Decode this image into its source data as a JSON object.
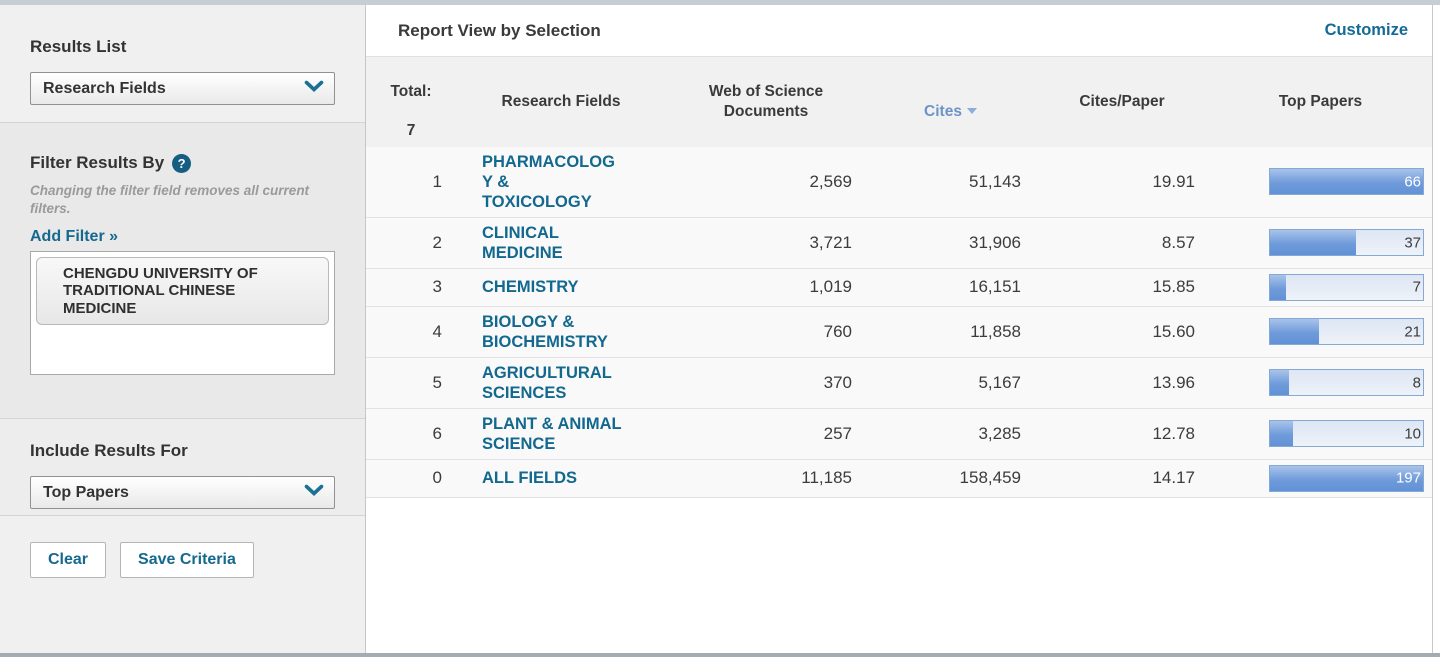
{
  "sidebar": {
    "results_list": {
      "label": "Results List",
      "selected": "Research Fields"
    },
    "filter": {
      "heading": "Filter Results By",
      "help_glyph": "?",
      "note": "Changing the filter field removes all current filters.",
      "add_filter_label": "Add Filter »",
      "selected_filter": "CHENGDU UNIVERSITY OF\nTRADITIONAL CHINESE\nMEDICINE"
    },
    "include_results": {
      "label": "Include Results For",
      "selected": "Top Papers"
    },
    "actions": {
      "clear": "Clear",
      "save": "Save Criteria"
    }
  },
  "main": {
    "title": "Report View by Selection",
    "customize_label": "Customize",
    "table": {
      "total_label": "Total:",
      "total_count": "7",
      "columns": {
        "research_fields": "Research Fields",
        "wos_documents": "Web of Science\nDocuments",
        "cites": "Cites",
        "cites_per_paper": "Cites/Paper",
        "top_papers": "Top Papers"
      },
      "sorted_by": "Cites",
      "sort_direction": "desc",
      "rows": [
        {
          "rank": "1",
          "field": "PHARMACOLOG\nY &\nTOXICOLOGY",
          "field_name": "PHARMACOLOGY & TOXICOLOGY",
          "wos_documents": "2,569",
          "cites": "51,143",
          "cites_per_paper": "19.91",
          "top_papers": 66
        },
        {
          "rank": "2",
          "field": "CLINICAL\nMEDICINE",
          "field_name": "CLINICAL MEDICINE",
          "wos_documents": "3,721",
          "cites": "31,906",
          "cites_per_paper": "8.57",
          "top_papers": 37
        },
        {
          "rank": "3",
          "field": "CHEMISTRY",
          "field_name": "CHEMISTRY",
          "wos_documents": "1,019",
          "cites": "16,151",
          "cites_per_paper": "15.85",
          "top_papers": 7
        },
        {
          "rank": "4",
          "field": "BIOLOGY &\nBIOCHEMISTRY",
          "field_name": "BIOLOGY & BIOCHEMISTRY",
          "wos_documents": "760",
          "cites": "11,858",
          "cites_per_paper": "15.60",
          "top_papers": 21
        },
        {
          "rank": "5",
          "field": "AGRICULTURAL\nSCIENCES",
          "field_name": "AGRICULTURAL SCIENCES",
          "wos_documents": "370",
          "cites": "5,167",
          "cites_per_paper": "13.96",
          "top_papers": 8
        },
        {
          "rank": "6",
          "field": "PLANT & ANIMAL\nSCIENCE",
          "field_name": "PLANT & ANIMAL SCIENCE",
          "wos_documents": "257",
          "cites": "3,285",
          "cites_per_paper": "12.78",
          "top_papers": 10
        },
        {
          "rank": "0",
          "field": "ALL FIELDS",
          "field_name": "ALL FIELDS",
          "wos_documents": "11,185",
          "cites": "158,459",
          "cites_per_paper": "14.17",
          "top_papers": 197
        }
      ]
    }
  },
  "colors": {
    "accent_link": "#15688e",
    "sorted_header": "#6d94c6",
    "bar_fill": "#6f9bda",
    "bar_border": "#85a8d4",
    "help_icon_bg": "#155e82",
    "top_strip": "#c4ced3",
    "bottom_strip": "#a3acb3"
  }
}
